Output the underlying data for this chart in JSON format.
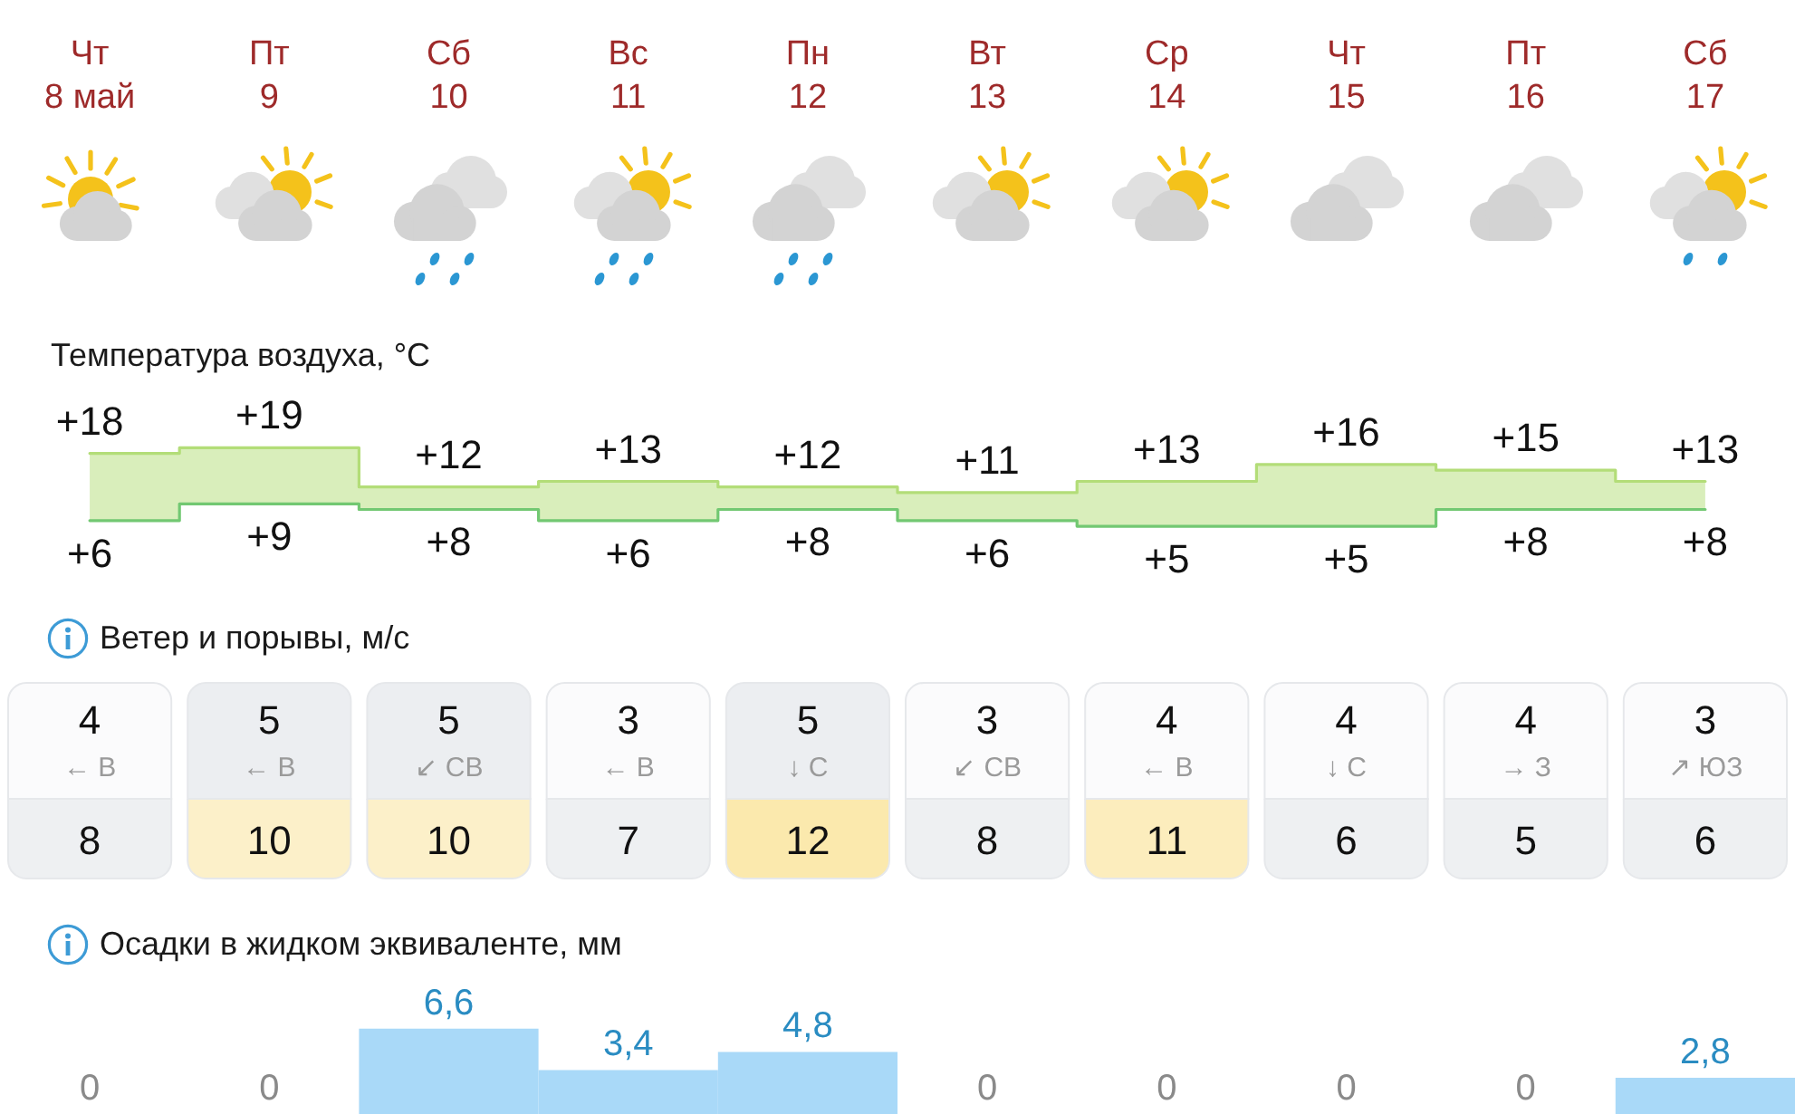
{
  "chart_data": [
    {
      "type": "step",
      "title": "Температура воздуха, °C",
      "categories": [
        "Чт\n8 май",
        "Пт\n9",
        "Сб\n10",
        "Вс\n11",
        "Пн\n12",
        "Вт\n13",
        "Ср\n14",
        "Чт\n15",
        "Пт\n16",
        "Сб\n17"
      ],
      "tick_labels": "x",
      "series": [
        {
          "color": "#b3dd78",
          "values": [
            18,
            19,
            12,
            13,
            12,
            11,
            13,
            16,
            15,
            13
          ],
          "value_labels": [
            "+18",
            "+19",
            "+12",
            "+13",
            "+12",
            "+11",
            "+13",
            "+16",
            "+15",
            "+13"
          ],
          "lower": [
            6,
            9,
            8,
            6,
            8,
            6,
            5,
            5,
            8,
            8
          ],
          "upper": [
            18,
            19,
            12,
            13,
            12,
            11,
            13,
            16,
            15,
            13
          ]
        },
        {
          "color": "#72c872",
          "values": [
            6,
            9,
            8,
            6,
            8,
            6,
            5,
            5,
            8,
            8
          ],
          "value_labels": [
            "+6",
            "+9",
            "+8",
            "+6",
            "+8",
            "+6",
            "+5",
            "+5",
            "+8",
            "+8"
          ]
        }
      ]
    },
    {
      "type": "other",
      "title": "Ветер и порывы, м/с",
      "annotations": [
        "4",
        "← В",
        "8",
        "5",
        "← В",
        "10",
        "5",
        "↙ СВ",
        "10",
        "3",
        "← В",
        "7",
        "5",
        "↓ С",
        "12",
        "3",
        "↙ СВ",
        "8",
        "4",
        "← В",
        "11",
        "4",
        "↓ С",
        "6",
        "4",
        "→ З",
        "5",
        "3",
        "↗ ЮЗ",
        "6"
      ],
      "colors": [
        "#fbfbfc",
        "#eef0f2",
        "#eceef1",
        "#fcf0c9",
        "#eceef1",
        "#fcf0c9",
        "#fbfbfc",
        "#eef0f2",
        "#eceef1",
        "#fbe9ad",
        "#fbfbfc",
        "#eef0f2",
        "#fbfbfc",
        "#fcedbd",
        "#fbfbfc",
        "#eef0f2",
        "#fbfbfc",
        "#eef0f2",
        "#fbfbfc",
        "#eef0f2"
      ]
    },
    {
      "type": "bar",
      "title": "Осадки в жидком эквиваленте, мм",
      "categories": [
        null,
        null,
        null,
        null,
        null,
        null,
        null,
        null,
        null,
        null
      ],
      "tick_labels": false,
      "values": [
        0,
        0,
        6.6,
        3.4,
        4.8,
        0,
        0,
        0,
        0,
        2.8
      ],
      "value_labels": [
        "0",
        "0",
        "6,6",
        "3,4",
        "4,8",
        "0",
        "0",
        "0",
        "0",
        "2,8"
      ],
      "color": "#a9d9f8"
    }
  ]
}
